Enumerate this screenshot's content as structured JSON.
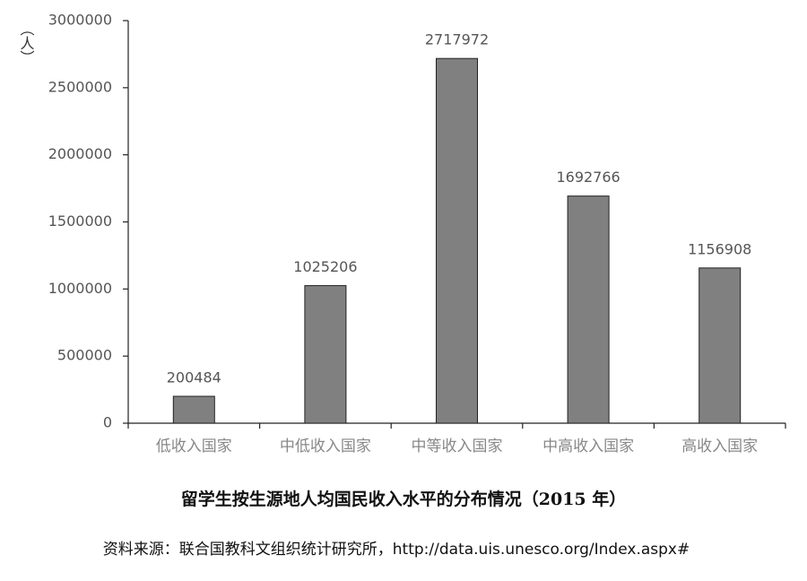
{
  "chart_data": {
    "type": "bar",
    "title": "留学生按生源地人均国民收入水平的分布情况（2015 年）",
    "source": "资料来源：联合国教科文组织统计研究所，http://data.uis.unesco.org/Index.aspx#",
    "y_label": "（人）",
    "categories": [
      "低收入国家",
      "中低收入国家",
      "中等收入国家",
      "中高收入国家",
      "高收入国家"
    ],
    "values": [
      200484,
      1025206,
      2717972,
      1692766,
      1156908
    ],
    "color": "#808080",
    "ylim": [
      0,
      3000000
    ],
    "yticks": [
      0,
      500000,
      1000000,
      1500000,
      2000000,
      2500000,
      3000000
    ],
    "grid": false
  }
}
